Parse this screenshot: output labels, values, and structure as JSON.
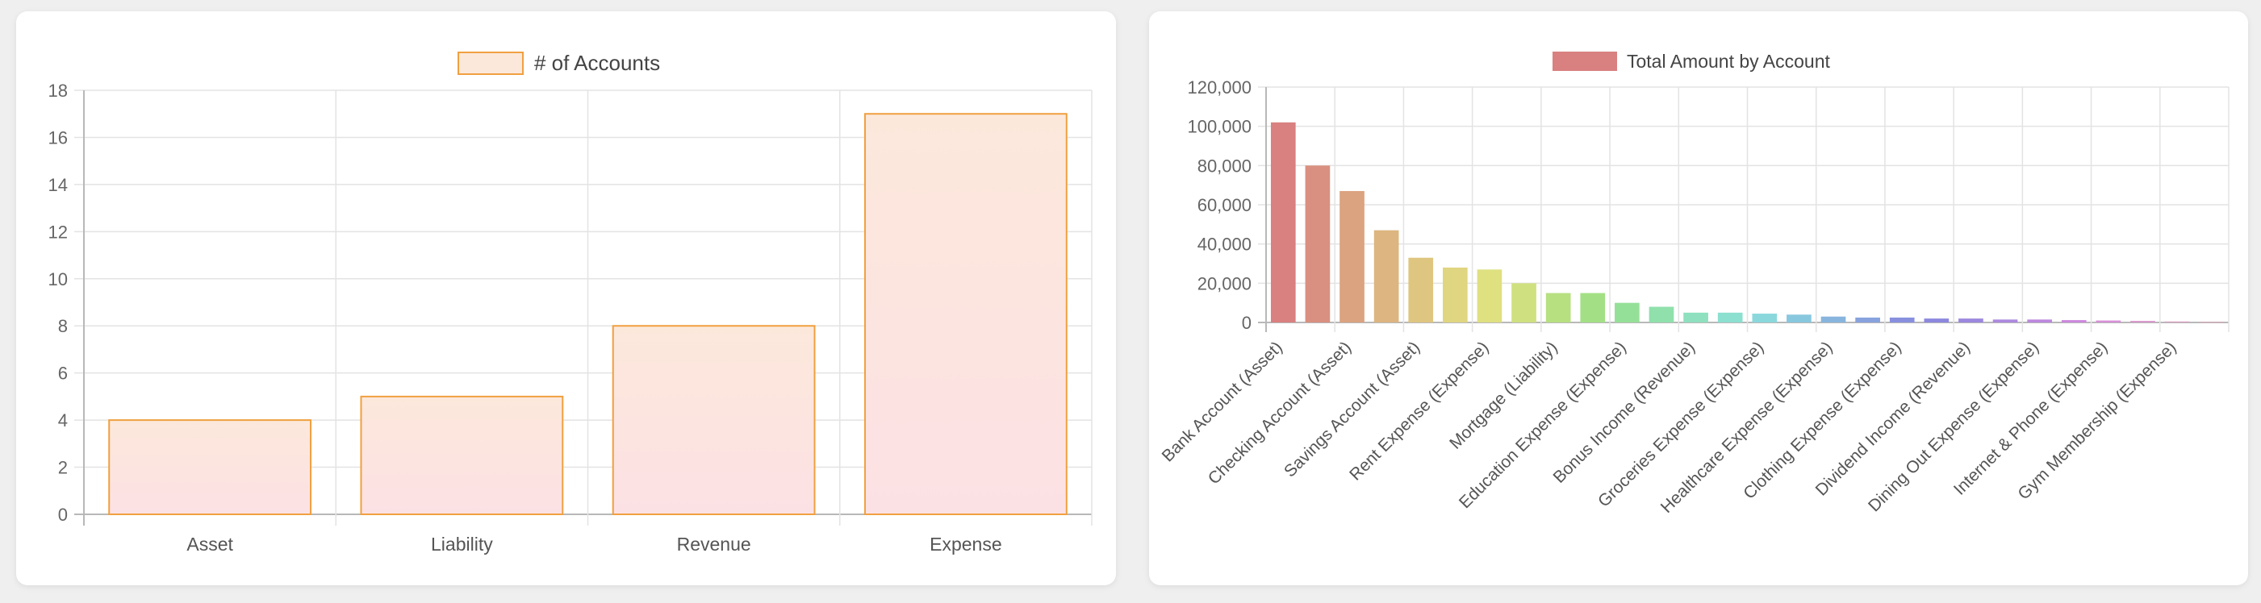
{
  "charts": [
    {
      "chart_data": {
        "type": "bar",
        "categories": [
          "Asset",
          "Liability",
          "Revenue",
          "Expense"
        ],
        "series": [
          {
            "name": "# of Accounts",
            "values": [
              4,
              5,
              8,
              17
            ]
          }
        ],
        "ylim": [
          0,
          18
        ],
        "yticks": [
          "0",
          "2",
          "4",
          "6",
          "8",
          "10",
          "12",
          "14",
          "16",
          "18"
        ],
        "grid": true,
        "legend": "top-center",
        "colors": {
          "bar_top": "#fce8db",
          "bar_bottom": "#fce1e4",
          "bar_border": "#f0a040"
        }
      }
    },
    {
      "chart_data": {
        "type": "bar",
        "categories": [
          "Bank Account (Asset)",
          "",
          "Checking Account (Asset)",
          "",
          "Savings Account (Asset)",
          "",
          "Rent Expense (Expense)",
          "",
          "Mortgage (Liability)",
          "",
          "Education Expense (Expense)",
          "",
          "Bonus Income (Revenue)",
          "",
          "Groceries Expense (Expense)",
          "",
          "Healthcare Expense (Expense)",
          "",
          "Clothing Expense (Expense)",
          "",
          "Dividend Income (Revenue)",
          "",
          "Dining Out Expense (Expense)",
          "",
          "Internet & Phone (Expense)",
          "",
          "Gym Membership (Expense)",
          ""
        ],
        "series": [
          {
            "name": "Total Amount by Account",
            "values": [
              102000,
              80000,
              67000,
              47000,
              33000,
              28000,
              27000,
              20000,
              15000,
              15000,
              10000,
              8000,
              5000,
              5000,
              4500,
              4000,
              3000,
              2500,
              2500,
              2000,
              2000,
              1500,
              1500,
              1200,
              1000,
              800,
              500,
              300
            ]
          }
        ],
        "ylim": [
          0,
          120000
        ],
        "yticks": [
          "0",
          "20,000",
          "40,000",
          "60,000",
          "80,000",
          "100,000",
          "120,000"
        ],
        "grid": true,
        "legend": "top-center",
        "colors": {
          "legend_swatch": "#d98080",
          "bars": [
            "#d98080",
            "#d99080",
            "#dba380",
            "#ddb580",
            "#dfc680",
            "#e0d580",
            "#dfe080",
            "#cfe080",
            "#b7e080",
            "#a3e085",
            "#95e098",
            "#90e0ac",
            "#8ee0bf",
            "#8ce0d0",
            "#8ad8dc",
            "#88c8de",
            "#88b5de",
            "#88a2de",
            "#8890de",
            "#8c88de",
            "#9c88de",
            "#ac88de",
            "#bc88de",
            "#cc88de",
            "#d890d8",
            "#d898cc",
            "#d8a0c0",
            "#d8a8b8"
          ]
        }
      }
    }
  ]
}
